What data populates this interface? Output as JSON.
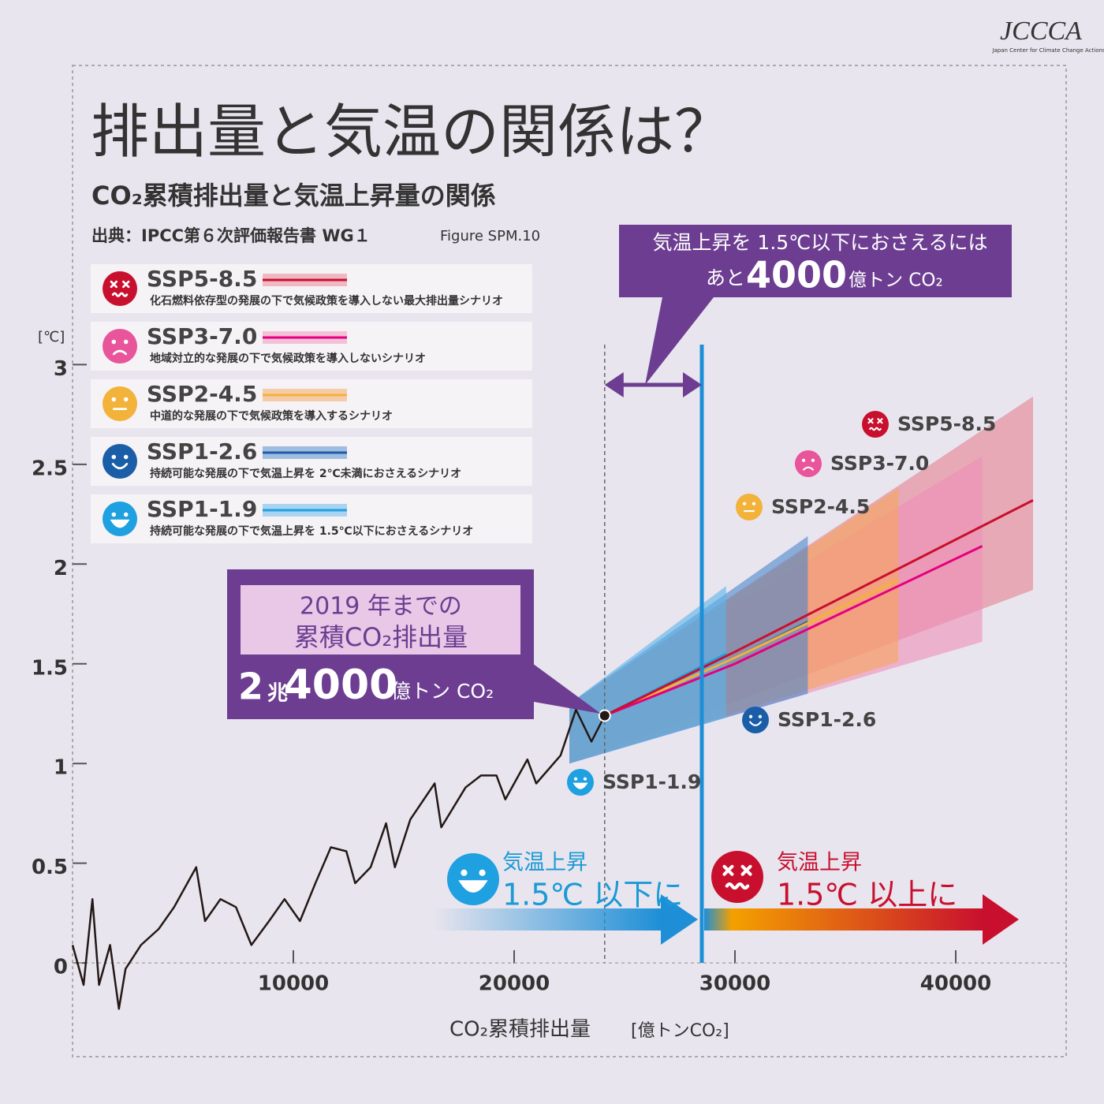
{
  "chart_data": {
    "type": "line",
    "title": "排出量と気温の関係は？",
    "subtitle": "CO₂累積排出量と気温上昇量の関係",
    "source": "出典：IPCC第６次評価報告書 WG１",
    "source_figure": "Figure SPM.10",
    "y_unit": "[℃]",
    "x_label": "CO₂累積排出量",
    "x_unit": "[億トンCO₂]",
    "xlim": [
      0,
      45000
    ],
    "ylim": [
      -0.47,
      4.5
    ],
    "xticks": [
      10000,
      20000,
      30000,
      40000
    ],
    "yticks": [
      0,
      0.5,
      1,
      1.5,
      2,
      2.5,
      3
    ],
    "history": {
      "color": "#231815",
      "x": [
        0,
        500,
        900,
        1200,
        1700,
        2100,
        2400,
        3100,
        3900,
        4600,
        5600,
        6000,
        6700,
        7400,
        8100,
        8900,
        9600,
        10300,
        11000,
        11700,
        12400,
        12800,
        13500,
        14200,
        14600,
        15300,
        16400,
        16700,
        17800,
        18500,
        19200,
        19600,
        20600,
        21000,
        22100,
        22800,
        23500,
        24100
      ],
      "values": [
        0.09,
        -0.11,
        0.32,
        -0.11,
        0.09,
        -0.23,
        -0.03,
        0.09,
        0.17,
        0.28,
        0.48,
        0.21,
        0.32,
        0.28,
        0.09,
        0.21,
        0.32,
        0.21,
        0.4,
        0.58,
        0.56,
        0.4,
        0.48,
        0.7,
        0.48,
        0.72,
        0.9,
        0.68,
        0.88,
        0.94,
        0.94,
        0.82,
        1.02,
        0.9,
        1.04,
        1.27,
        1.11,
        1.24
      ]
    },
    "series": [
      {
        "name": "SSP5-8.5",
        "description": "化石燃料依存型の発展の下で気候政策を導入しない最大排出量シナリオ",
        "color": "#c8102e",
        "band_color": "#e5808f",
        "face": "dead",
        "x": [
          24100,
          30000,
          43500
        ],
        "values": [
          1.24,
          1.56,
          2.32
        ],
        "band_x": [
          22500,
          43500
        ],
        "band_low": [
          1.0,
          1.87
        ],
        "band_high": [
          1.3,
          2.84
        ]
      },
      {
        "name": "SSP3-7.0",
        "description": "地域対立的な発展の下で気候政策を導入しないシナリオ",
        "color": "#e4007f",
        "band_color": "#ef8fb8",
        "face": "sad",
        "x": [
          24100,
          30000,
          41200
        ],
        "values": [
          1.24,
          1.5,
          2.09
        ],
        "band_x": [
          22500,
          41200
        ],
        "band_low": [
          1.0,
          1.61
        ],
        "band_high": [
          1.3,
          2.54
        ]
      },
      {
        "name": "SSP2-4.5",
        "description": "中道的な発展の下で気候政策を導入するシナリオ",
        "color": "#f3b23a",
        "band_color": "#f6a55a",
        "face": "neutral",
        "x": [
          24100,
          30000,
          37400
        ],
        "values": [
          1.24,
          1.53,
          1.92
        ],
        "band_x": [
          22500,
          37400
        ],
        "band_low": [
          1.0,
          1.51
        ],
        "band_high": [
          1.3,
          2.38
        ]
      },
      {
        "name": "SSP1-2.6",
        "description": "持続可能な発展の下で気温上昇を 2℃未満におさえるシナリオ",
        "color": "#1b5ea8",
        "band_color": "#4a86cc",
        "face": "smile",
        "x": [
          24100,
          30000,
          33300
        ],
        "values": [
          1.24,
          1.53,
          1.71
        ],
        "band_x": [
          22500,
          33300
        ],
        "band_low": [
          1.0,
          1.35
        ],
        "band_high": [
          1.3,
          2.14
        ]
      },
      {
        "name": "SSP1-1.9",
        "description": "持続可能な発展の下で気温上昇を 1.5℃以下におさえるシナリオ",
        "color": "#1fa0e0",
        "band_color": "#5bb4ea",
        "face": "grin",
        "x": [
          24100,
          29600
        ],
        "values": [
          1.24,
          1.55
        ],
        "band_x": [
          22500,
          29600
        ],
        "band_low": [
          1.0,
          1.23
        ],
        "band_high": [
          1.3,
          1.89
        ]
      }
    ],
    "now_x": 24100,
    "limit_x": 28500,
    "annotations": {
      "budget_line1": "気温上昇を 1.5℃以下におさえるには",
      "budget_prefix": "あと",
      "budget_number": "4000",
      "budget_unit": "億トン CO₂",
      "history_line1": "2019 年までの",
      "history_line2": "累積CO₂排出量",
      "history_a": "2",
      "history_b": "兆",
      "history_c": "4000",
      "history_d": "億トン CO₂",
      "below_title": "気温上昇",
      "below_text": "1.5℃ 以下に",
      "above_title": "気温上昇",
      "above_text": "1.5℃ 以上に"
    },
    "logo": {
      "name": "JCCCA",
      "full": "Japan Center for Climate Change Actions"
    }
  }
}
